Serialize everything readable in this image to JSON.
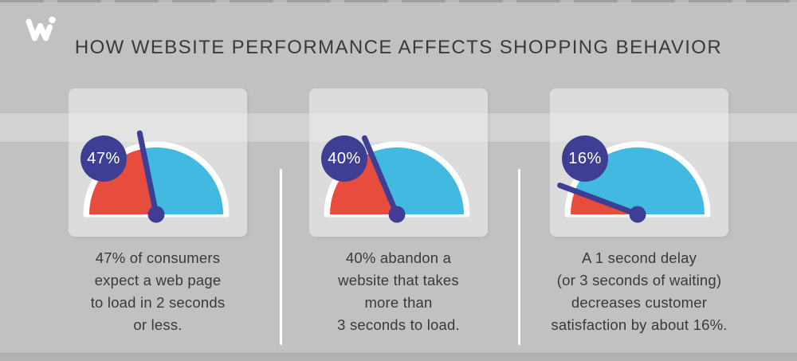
{
  "header": {
    "title": "HOW WEBSITE PERFORMANCE AFFECTS SHOPPING BEHAVIOR",
    "logo_icon": "w-dot-logo"
  },
  "colors": {
    "background": "#c1c1c1",
    "highlight_band": "#d2d2d2",
    "card_background": "#dcdcdc",
    "card_band": "#e3e3e3",
    "bottom_strip": "#b2b2b2",
    "gauge_red": "#e74c3c",
    "gauge_blue": "#41b9e0",
    "indigo": "#3e3e94",
    "gauge_outline": "#ffffff",
    "divider": "#ffffff",
    "text": "#3a3a3a",
    "badge_text": "#ffffff",
    "logo": "#ffffff"
  },
  "chart_data": {
    "type": "gauge",
    "title": "HOW WEBSITE PERFORMANCE AFFECTS SHOPPING BEHAVIOR",
    "scale_min": 0,
    "scale_max": 100,
    "legend_position": "none",
    "gauges": [
      {
        "value_pct": 47,
        "label": "47%",
        "low_color": "#e74c3c",
        "high_color": "#41b9e0",
        "caption": "47% of consumers expect a web page to load in 2 seconds or less."
      },
      {
        "value_pct": 40,
        "label": "40%",
        "low_color": "#e74c3c",
        "high_color": "#41b9e0",
        "caption": "40% abandon a website that takes more than 3 seconds to load."
      },
      {
        "value_pct": 16,
        "label": "16%",
        "low_color": "#e74c3c",
        "high_color": "#41b9e0",
        "caption": "A 1 second delay (or 3 seconds of waiting) decreases customer satisfaction by about 16%."
      }
    ]
  },
  "panels": [
    {
      "percent": "47%",
      "value": 47,
      "needle_angle_deg": 101.5,
      "lines": [
        "47% of consumers",
        "expect a web page",
        "to load in 2 seconds",
        "or less."
      ]
    },
    {
      "percent": "40%",
      "value": 40,
      "needle_angle_deg": 113,
      "lines": [
        "40% abandon a",
        "website that takes",
        "more than",
        "3 seconds to load."
      ]
    },
    {
      "percent": "16%",
      "value": 16,
      "needle_angle_deg": 159.5,
      "lines": [
        "A 1 second delay",
        "(or 3 seconds of waiting)",
        "decreases customer",
        "satisfaction by about 16%."
      ]
    }
  ]
}
